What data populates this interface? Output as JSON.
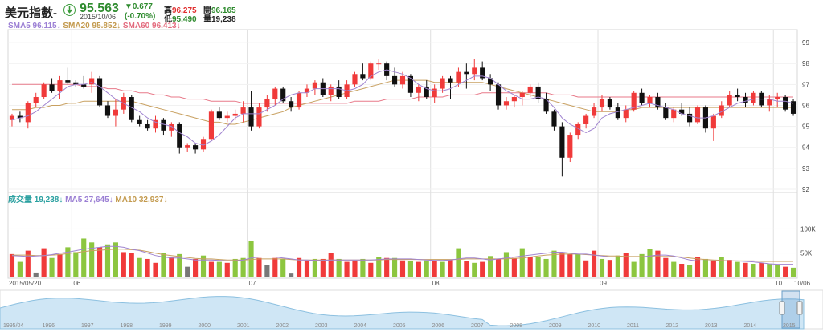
{
  "header": {
    "title": "美元指數-",
    "price": "95.563",
    "date": "2015/10/06",
    "change": "▼0.677",
    "change_pct": "(-0.70%)",
    "high_label": "高",
    "high": "96.275",
    "open_label": "開",
    "open": "96.165",
    "low_label": "低",
    "low": "95.490",
    "volume_label": "量",
    "volume": "19,238"
  },
  "colors": {
    "up": "#f03a3a",
    "down": "#111111",
    "vol_up": "#f03a3a",
    "vol_down": "#8cc63f",
    "sma5": "#a084d0",
    "sma20": "#c8a060",
    "sma60": "#e87a8a"
  },
  "legend_price": [
    {
      "label": "SMA5 96.115",
      "color": "#9b7fd4"
    },
    {
      "label": "SMA20 95.852",
      "color": "#c39a4e"
    },
    {
      "label": "SMA60 96.413",
      "color": "#e36b7e"
    }
  ],
  "legend_volume": [
    {
      "label": "成交量 19,238",
      "color": "#2aa0a0"
    },
    {
      "label": "MA5 27,645",
      "color": "#9b7fd4"
    },
    {
      "label": "MA10 32,937",
      "color": "#c39a4e"
    }
  ],
  "chart_data": [
    {
      "type": "candlestick",
      "y_ticks": [
        99,
        98,
        97,
        96,
        95,
        94,
        93,
        92
      ],
      "ylim": [
        92,
        99.5
      ],
      "x_ticks": [
        {
          "label": "2015/05/20",
          "index": 0
        },
        {
          "label": "06",
          "index": 8
        },
        {
          "label": "07",
          "index": 30
        },
        {
          "label": "08",
          "index": 53
        },
        {
          "label": "09",
          "index": 74
        },
        {
          "label": "10",
          "index": 96
        },
        {
          "label": "10/06",
          "index": 98
        }
      ],
      "ohlc": [
        [
          95.3,
          95.6,
          95.0,
          95.5
        ],
        [
          95.5,
          95.7,
          95.2,
          95.4
        ],
        [
          95.2,
          96.2,
          94.9,
          96.1
        ],
        [
          96.1,
          96.6,
          95.9,
          96.4
        ],
        [
          96.4,
          97.1,
          96.3,
          97.0
        ],
        [
          97.0,
          97.3,
          96.6,
          96.7
        ],
        [
          96.7,
          97.4,
          96.3,
          97.2
        ],
        [
          97.2,
          97.8,
          97.0,
          97.1
        ],
        [
          97.1,
          97.2,
          96.9,
          97.0
        ],
        [
          97.0,
          97.4,
          96.8,
          96.9
        ],
        [
          97.0,
          97.6,
          96.6,
          97.3
        ],
        [
          97.3,
          97.4,
          95.9,
          96.0
        ],
        [
          96.0,
          96.2,
          95.4,
          95.5
        ],
        [
          95.5,
          96.3,
          95.0,
          95.8
        ],
        [
          95.8,
          96.6,
          95.6,
          96.4
        ],
        [
          96.4,
          96.5,
          95.2,
          95.3
        ],
        [
          95.3,
          95.5,
          95.0,
          95.1
        ],
        [
          95.1,
          95.3,
          94.8,
          94.9
        ],
        [
          94.9,
          95.5,
          94.7,
          95.3
        ],
        [
          95.3,
          95.4,
          94.6,
          94.8
        ],
        [
          94.8,
          95.2,
          94.5,
          95.1
        ],
        [
          95.1,
          95.2,
          93.7,
          94.0
        ],
        [
          94.0,
          94.2,
          93.8,
          94.1
        ],
        [
          94.1,
          94.2,
          93.7,
          93.9
        ],
        [
          93.9,
          94.5,
          93.8,
          94.4
        ],
        [
          94.4,
          95.8,
          94.3,
          95.7
        ],
        [
          95.7,
          95.9,
          95.3,
          95.4
        ],
        [
          95.4,
          95.7,
          95.2,
          95.5
        ],
        [
          95.5,
          95.8,
          95.3,
          95.6
        ],
        [
          95.6,
          96.2,
          95.2,
          95.9
        ],
        [
          95.9,
          96.7,
          94.8,
          95.0
        ],
        [
          95.0,
          96.1,
          94.9,
          95.9
        ],
        [
          95.9,
          96.5,
          95.7,
          96.3
        ],
        [
          96.3,
          96.9,
          96.0,
          96.8
        ],
        [
          96.8,
          96.9,
          96.1,
          96.2
        ],
        [
          96.2,
          96.4,
          95.7,
          95.9
        ],
        [
          95.9,
          96.7,
          95.8,
          96.6
        ],
        [
          96.6,
          97.0,
          96.4,
          96.8
        ],
        [
          96.8,
          97.2,
          96.5,
          97.1
        ],
        [
          97.1,
          97.3,
          96.4,
          96.5
        ],
        [
          96.5,
          97.0,
          96.2,
          96.9
        ],
        [
          96.9,
          97.2,
          96.3,
          96.4
        ],
        [
          96.4,
          97.2,
          96.3,
          97.0
        ],
        [
          97.0,
          97.6,
          96.9,
          97.5
        ],
        [
          97.5,
          98.0,
          97.2,
          97.3
        ],
        [
          97.3,
          98.1,
          97.2,
          98.0
        ],
        [
          98.0,
          98.2,
          97.7,
          98.0
        ],
        [
          98.0,
          98.1,
          97.2,
          97.4
        ],
        [
          97.4,
          97.8,
          96.9,
          97.0
        ],
        [
          97.0,
          97.6,
          96.8,
          97.4
        ],
        [
          97.4,
          97.5,
          96.4,
          96.6
        ],
        [
          96.6,
          97.0,
          96.2,
          96.9
        ],
        [
          96.9,
          97.2,
          96.3,
          96.4
        ],
        [
          96.4,
          97.0,
          96.1,
          96.8
        ],
        [
          96.8,
          97.4,
          96.6,
          97.3
        ],
        [
          97.3,
          97.4,
          96.3,
          97.1
        ],
        [
          97.1,
          97.8,
          96.9,
          97.6
        ],
        [
          97.6,
          98.0,
          96.8,
          97.5
        ],
        [
          97.5,
          98.2,
          97.2,
          97.8
        ],
        [
          97.8,
          98.1,
          97.2,
          97.3
        ],
        [
          97.3,
          97.5,
          96.7,
          97.0
        ],
        [
          97.0,
          97.1,
          95.8,
          96.0
        ],
        [
          96.0,
          96.4,
          95.8,
          96.2
        ],
        [
          96.2,
          96.5,
          95.9,
          96.4
        ],
        [
          96.4,
          96.7,
          96.0,
          96.6
        ],
        [
          96.6,
          97.0,
          96.4,
          96.9
        ],
        [
          96.9,
          97.1,
          96.1,
          96.3
        ],
        [
          96.3,
          96.6,
          95.6,
          95.7
        ],
        [
          95.7,
          95.8,
          94.8,
          95.0
        ],
        [
          95.0,
          95.2,
          92.6,
          93.5
        ],
        [
          93.5,
          94.7,
          93.3,
          94.6
        ],
        [
          94.6,
          95.2,
          94.4,
          95.1
        ],
        [
          95.1,
          95.6,
          94.9,
          95.5
        ],
        [
          95.5,
          96.1,
          95.4,
          95.9
        ],
        [
          95.9,
          96.5,
          95.7,
          96.3
        ],
        [
          96.3,
          96.4,
          95.8,
          95.9
        ],
        [
          95.9,
          96.1,
          95.3,
          95.4
        ],
        [
          95.4,
          96.0,
          95.2,
          95.8
        ],
        [
          95.8,
          96.7,
          95.7,
          96.6
        ],
        [
          96.6,
          96.8,
          96.0,
          96.1
        ],
        [
          96.1,
          96.5,
          95.9,
          96.4
        ],
        [
          96.4,
          96.6,
          95.8,
          95.9
        ],
        [
          95.9,
          96.1,
          95.3,
          95.4
        ],
        [
          95.4,
          95.9,
          95.2,
          95.8
        ],
        [
          95.8,
          96.1,
          95.5,
          95.6
        ],
        [
          95.6,
          95.9,
          95.0,
          95.2
        ],
        [
          95.2,
          96.0,
          95.1,
          95.9
        ],
        [
          95.9,
          96.0,
          94.7,
          94.9
        ],
        [
          94.9,
          95.6,
          94.3,
          95.5
        ],
        [
          95.5,
          96.2,
          95.4,
          96.0
        ],
        [
          96.0,
          96.7,
          95.9,
          96.5
        ],
        [
          96.5,
          96.8,
          96.2,
          96.4
        ],
        [
          96.4,
          96.6,
          95.9,
          96.1
        ],
        [
          96.1,
          96.7,
          96.0,
          96.6
        ],
        [
          96.6,
          96.7,
          95.9,
          96.0
        ],
        [
          96.0,
          96.5,
          95.7,
          96.3
        ],
        [
          96.3,
          96.6,
          95.9,
          96.4
        ],
        [
          96.4,
          96.5,
          95.7,
          95.8
        ],
        [
          96.2,
          96.3,
          95.5,
          95.6
        ]
      ],
      "sma5": [
        95.3,
        95.4,
        95.5,
        95.7,
        96.0,
        96.3,
        96.6,
        96.9,
        97.0,
        97.0,
        97.1,
        96.9,
        96.6,
        96.3,
        96.1,
        95.9,
        95.7,
        95.4,
        95.2,
        95.1,
        95.0,
        94.7,
        94.5,
        94.2,
        94.1,
        94.3,
        94.6,
        95.0,
        95.4,
        95.6,
        95.6,
        95.6,
        95.8,
        96.0,
        96.3,
        96.5,
        96.6,
        96.6,
        96.8,
        96.8,
        96.8,
        96.8,
        96.7,
        96.8,
        97.0,
        97.4,
        97.6,
        97.7,
        97.6,
        97.5,
        97.3,
        97.0,
        96.8,
        96.7,
        96.7,
        96.8,
        97.0,
        97.2,
        97.4,
        97.4,
        97.3,
        97.0,
        96.7,
        96.5,
        96.3,
        96.3,
        96.4,
        96.3,
        95.9,
        95.4,
        95.1,
        94.9,
        94.7,
        94.9,
        95.4,
        95.6,
        95.7,
        95.8,
        95.9,
        96.0,
        96.1,
        96.0,
        95.9,
        95.8,
        95.6,
        95.5,
        95.4,
        95.4,
        95.5,
        95.7,
        95.9,
        96.1,
        96.2,
        96.3,
        96.3,
        96.3,
        96.2,
        96.2,
        96.1
      ],
      "sma20": [
        95.8,
        95.8,
        95.8,
        95.9,
        95.9,
        96.0,
        96.0,
        96.1,
        96.1,
        96.2,
        96.2,
        96.2,
        96.2,
        96.2,
        96.2,
        96.2,
        96.1,
        96.0,
        95.9,
        95.8,
        95.7,
        95.6,
        95.5,
        95.4,
        95.3,
        95.2,
        95.2,
        95.1,
        95.1,
        95.2,
        95.3,
        95.4,
        95.5,
        95.6,
        95.7,
        95.9,
        96.0,
        96.1,
        96.2,
        96.3,
        96.4,
        96.5,
        96.6,
        96.7,
        96.8,
        96.9,
        97.0,
        97.1,
        97.2,
        97.2,
        97.2,
        97.2,
        97.2,
        97.1,
        97.1,
        97.1,
        97.1,
        97.1,
        97.1,
        97.1,
        97.0,
        96.9,
        96.8,
        96.7,
        96.6,
        96.5,
        96.4,
        96.3,
        96.2,
        96.1,
        96.0,
        95.9,
        95.8,
        95.7,
        95.7,
        95.7,
        95.7,
        95.8,
        95.8,
        95.9,
        95.9,
        95.9,
        95.9,
        95.9,
        95.9,
        95.9,
        95.9,
        95.9,
        95.9,
        95.9,
        95.9,
        95.9,
        95.9,
        95.9,
        95.9,
        95.9,
        95.9,
        95.9,
        95.9
      ],
      "sma60": [
        97.0,
        97.0,
        97.0,
        97.0,
        97.0,
        97.0,
        97.0,
        97.0,
        97.0,
        96.9,
        96.9,
        96.9,
        96.8,
        96.8,
        96.7,
        96.7,
        96.6,
        96.6,
        96.5,
        96.5,
        96.4,
        96.4,
        96.3,
        96.3,
        96.3,
        96.2,
        96.2,
        96.2,
        96.2,
        96.1,
        96.1,
        96.1,
        96.1,
        96.1,
        96.1,
        96.1,
        96.1,
        96.1,
        96.1,
        96.1,
        96.1,
        96.1,
        96.1,
        96.2,
        96.2,
        96.2,
        96.2,
        96.3,
        96.3,
        96.3,
        96.3,
        96.4,
        96.4,
        96.4,
        96.4,
        96.5,
        96.5,
        96.5,
        96.5,
        96.6,
        96.6,
        96.6,
        96.6,
        96.6,
        96.6,
        96.6,
        96.6,
        96.6,
        96.5,
        96.5,
        96.5,
        96.4,
        96.4,
        96.4,
        96.4,
        96.4,
        96.4,
        96.4,
        96.4,
        96.4,
        96.4,
        96.4,
        96.4,
        96.4,
        96.4,
        96.4,
        96.4,
        96.4,
        96.4,
        96.4,
        96.4,
        96.4,
        96.4,
        96.4,
        96.4,
        96.4,
        96.4,
        96.4,
        96.4
      ]
    },
    {
      "type": "bar",
      "y_ticks": [
        "100K",
        "50K"
      ],
      "ylim": [
        0,
        150
      ],
      "units": "thousands",
      "volume": [
        48,
        32,
        55,
        10,
        60,
        40,
        48,
        62,
        52,
        80,
        72,
        62,
        68,
        72,
        52,
        50,
        40,
        38,
        30,
        50,
        42,
        48,
        22,
        38,
        45,
        32,
        32,
        30,
        38,
        40,
        75,
        40,
        25,
        40,
        38,
        8,
        40,
        35,
        38,
        38,
        50,
        38,
        32,
        35,
        38,
        30,
        42,
        40,
        40,
        35,
        34,
        32,
        35,
        35,
        32,
        36,
        60,
        34,
        30,
        32,
        44,
        38,
        52,
        40,
        60,
        42,
        42,
        38,
        55,
        50,
        48,
        48,
        35,
        55,
        38,
        36,
        45,
        50,
        32,
        48,
        58,
        55,
        40,
        32,
        28,
        26,
        42,
        38,
        35,
        42,
        36,
        32,
        30,
        28,
        30,
        28,
        25,
        22,
        20
      ],
      "volume_color": [
        "r",
        "g",
        "r",
        "x",
        "r",
        "g",
        "r",
        "g",
        "g",
        "g",
        "g",
        "r",
        "g",
        "g",
        "r",
        "r",
        "g",
        "r",
        "r",
        "g",
        "r",
        "g",
        "x",
        "r",
        "g",
        "r",
        "g",
        "r",
        "g",
        "g",
        "g",
        "r",
        "x",
        "r",
        "g",
        "x",
        "r",
        "r",
        "g",
        "r",
        "r",
        "g",
        "r",
        "r",
        "g",
        "r",
        "g",
        "r",
        "g",
        "r",
        "g",
        "r",
        "g",
        "r",
        "g",
        "r",
        "g",
        "r",
        "g",
        "r",
        "g",
        "r",
        "g",
        "r",
        "g",
        "r",
        "g",
        "g",
        "g",
        "r",
        "r",
        "g",
        "r",
        "r",
        "g",
        "r",
        "g",
        "r",
        "g",
        "g",
        "g",
        "r",
        "r",
        "g",
        "r",
        "g",
        "r",
        "g",
        "r",
        "g",
        "r",
        "g",
        "r",
        "g",
        "r",
        "g",
        "g",
        "r",
        "g"
      ],
      "ma5": [
        45,
        44,
        43,
        44,
        45,
        47,
        50,
        52,
        55,
        58,
        60,
        62,
        64,
        64,
        62,
        58,
        55,
        50,
        45,
        42,
        40,
        40,
        38,
        36,
        36,
        36,
        35,
        34,
        34,
        36,
        40,
        42,
        42,
        42,
        40,
        38,
        36,
        36,
        35,
        35,
        36,
        36,
        36,
        36,
        36,
        36,
        37,
        38,
        38,
        38,
        38,
        37,
        36,
        35,
        35,
        36,
        38,
        40,
        40,
        38,
        36,
        38,
        40,
        42,
        44,
        46,
        48,
        50,
        52,
        52,
        50,
        48,
        48,
        46,
        44,
        42,
        42,
        42,
        42,
        42,
        44,
        46,
        46,
        44,
        40,
        36,
        34,
        34,
        34,
        34,
        34,
        34,
        33,
        32,
        30,
        28,
        27,
        27,
        27
      ],
      "ma10": [
        46,
        46,
        46,
        45,
        45,
        46,
        47,
        49,
        51,
        53,
        55,
        56,
        57,
        58,
        58,
        57,
        56,
        53,
        50,
        47,
        45,
        43,
        41,
        39,
        38,
        38,
        37,
        36,
        36,
        36,
        37,
        38,
        38,
        38,
        38,
        37,
        36,
        36,
        36,
        36,
        36,
        36,
        36,
        36,
        36,
        36,
        36,
        37,
        37,
        37,
        37,
        37,
        37,
        37,
        37,
        37,
        37,
        38,
        38,
        38,
        38,
        38,
        38,
        39,
        40,
        42,
        44,
        46,
        47,
        48,
        48,
        48,
        47,
        46,
        45,
        44,
        44,
        43,
        43,
        43,
        43,
        43,
        43,
        43,
        42,
        40,
        38,
        37,
        36,
        35,
        34,
        34,
        34,
        34,
        33,
        33,
        33,
        33,
        33
      ]
    }
  ],
  "navigator": {
    "year_labels": [
      "1995/04",
      "1996",
      "1997",
      "1998",
      "1999",
      "2000",
      "2001",
      "2002",
      "2003",
      "2004",
      "2005",
      "2006",
      "2007",
      "2008",
      "2009",
      "2010",
      "2011",
      "2012",
      "2013",
      "2014",
      "2015"
    ]
  }
}
